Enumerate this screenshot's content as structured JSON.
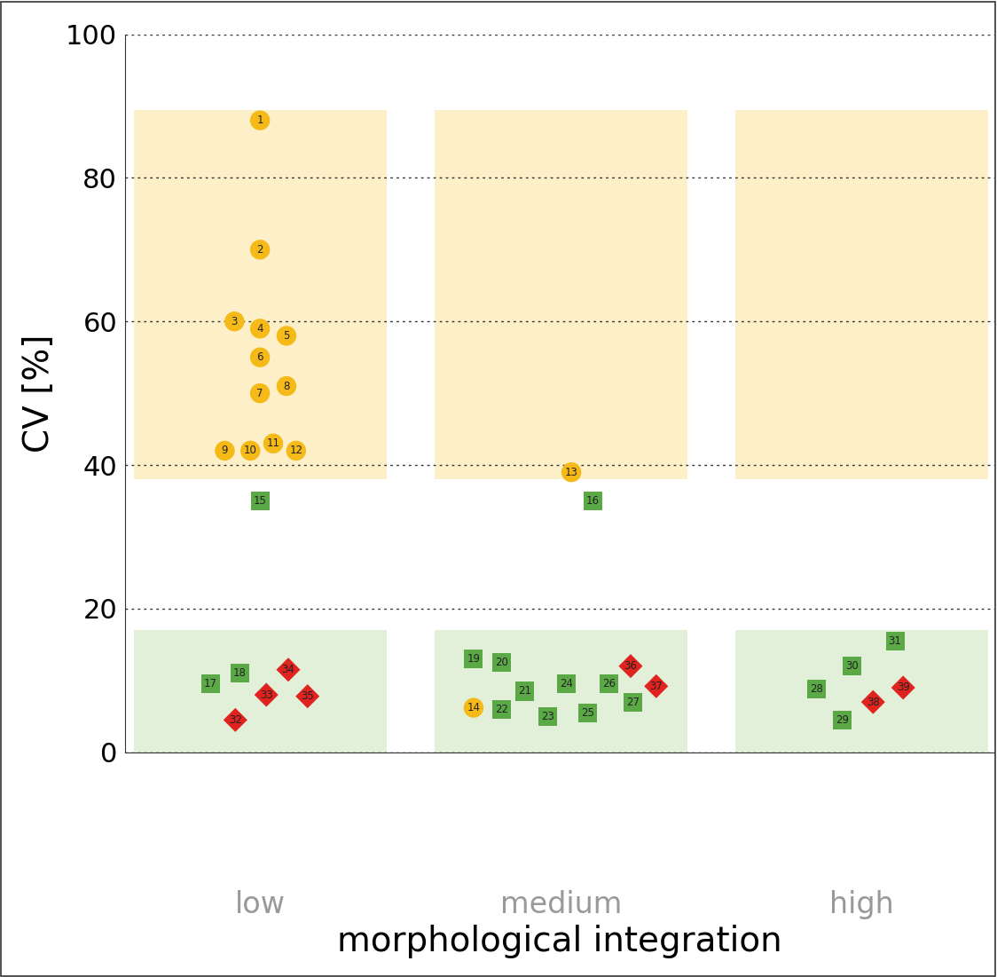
{
  "chart_data": {
    "type": "scatter",
    "x_label": "morphological integration",
    "y_label": "CV [%]",
    "categories": [
      "low",
      "medium",
      "high"
    ],
    "xlim": [
      -0.45,
      2.44
    ],
    "ylim": [
      0,
      100
    ],
    "yticks": [
      0,
      20,
      40,
      60,
      80,
      100
    ],
    "grid": true,
    "bands": [
      {
        "from": 38,
        "to": 89.5,
        "color": "#fdf0c8"
      },
      {
        "from": 0,
        "to": 17,
        "color": "#e2f0d9"
      }
    ],
    "series": [
      {
        "color": "#f5b918",
        "marker": "circle",
        "x": [
          0,
          0,
          -0.085,
          0,
          0.088,
          0,
          0,
          0.088,
          -0.117,
          -0.032,
          0.044,
          0.12,
          1.035,
          0.71
        ],
        "values": [
          88,
          70,
          60,
          59,
          58,
          55,
          50,
          51,
          42,
          42,
          43,
          42,
          39,
          6.2
        ],
        "labels": [
          "1",
          "2",
          "3",
          "4",
          "5",
          "6",
          "7",
          "8",
          "9",
          "10",
          "11",
          "12",
          "13",
          "14"
        ]
      },
      {
        "color": "#5aa846",
        "marker": "square",
        "x": [
          0,
          1.106,
          -0.164,
          -0.067,
          0.71,
          0.804,
          0.88,
          0.804,
          0.956,
          1.018,
          1.088,
          1.161,
          1.24,
          1.85,
          1.935,
          1.968,
          2.111
        ],
        "values": [
          35,
          35,
          9.5,
          11,
          13,
          12.5,
          8.5,
          6,
          5,
          9.5,
          5.5,
          9.5,
          7,
          8.8,
          4.5,
          12,
          15.5
        ],
        "labels": [
          "15",
          "16",
          "17",
          "18",
          "19",
          "20",
          "21",
          "22",
          "23",
          "24",
          "25",
          "26",
          "27",
          "28",
          "29",
          "30",
          "31"
        ]
      },
      {
        "color": "#e0231f",
        "marker": "diamond",
        "x": [
          -0.082,
          0.021,
          0.094,
          0.158,
          1.232,
          1.317,
          2.038,
          2.138
        ],
        "values": [
          4.5,
          8,
          11.5,
          7.8,
          12,
          9.2,
          7,
          9
        ],
        "labels": [
          "32",
          "33",
          "34",
          "35",
          "36",
          "37",
          "38",
          "39"
        ]
      }
    ]
  }
}
